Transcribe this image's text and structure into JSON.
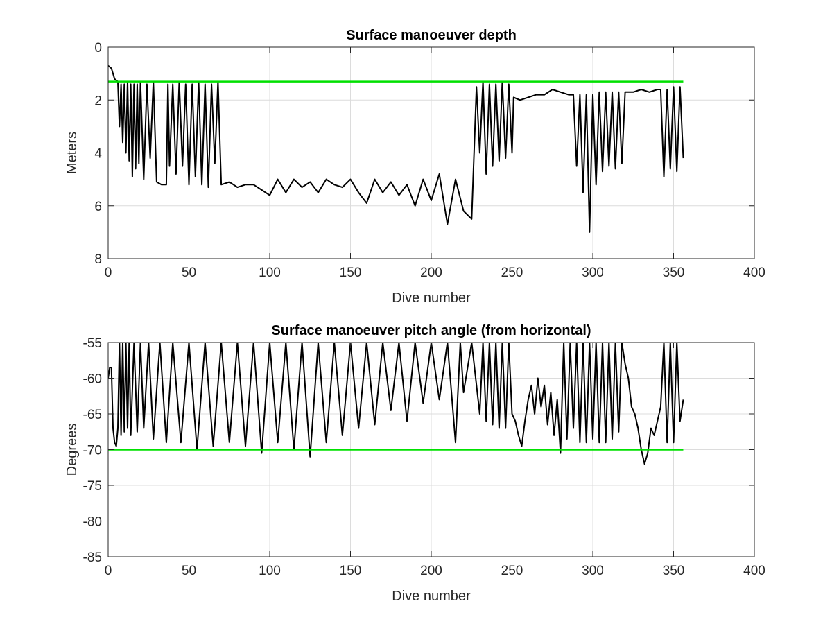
{
  "chart_data": [
    {
      "type": "line",
      "title": "Surface manoeuver depth",
      "xlabel": "Dive number",
      "ylabel": "Meters",
      "xlim": [
        0,
        400
      ],
      "ylim": [
        0,
        8
      ],
      "y_reversed": true,
      "grid": true,
      "x_ticks": [
        "0",
        "50",
        "100",
        "150",
        "200",
        "250",
        "300",
        "350",
        "400"
      ],
      "y_ticks": [
        "0",
        "2",
        "4",
        "6",
        "8"
      ],
      "reference_line": {
        "y": 1.3,
        "x_range": [
          0,
          356
        ],
        "color": "#00e000"
      },
      "series": [
        {
          "color": "#000000",
          "x": [
            0,
            2,
            4,
            6,
            7,
            8,
            9,
            10,
            11,
            12,
            13,
            14,
            15,
            16,
            17,
            18,
            19,
            20,
            22,
            24,
            26,
            28,
            30,
            33,
            36,
            37,
            38,
            40,
            42,
            44,
            46,
            48,
            50,
            52,
            54,
            56,
            58,
            60,
            62,
            64,
            66,
            68,
            70,
            75,
            80,
            85,
            90,
            95,
            100,
            105,
            110,
            115,
            120,
            125,
            130,
            135,
            140,
            145,
            150,
            155,
            160,
            165,
            170,
            175,
            180,
            185,
            190,
            195,
            200,
            205,
            210,
            215,
            220,
            225,
            228,
            230,
            232,
            234,
            236,
            238,
            240,
            242,
            244,
            246,
            248,
            250,
            251,
            255,
            260,
            265,
            270,
            275,
            280,
            285,
            288,
            290,
            292,
            294,
            296,
            298,
            300,
            302,
            304,
            306,
            308,
            310,
            312,
            314,
            316,
            318,
            320,
            325,
            330,
            335,
            340,
            342,
            344,
            346,
            348,
            350,
            352,
            354,
            356
          ],
          "y": [
            0.7,
            0.8,
            1.2,
            1.3,
            3.0,
            1.4,
            3.6,
            1.4,
            4.0,
            1.3,
            4.3,
            1.4,
            4.9,
            1.4,
            4.6,
            1.4,
            4.4,
            1.3,
            5.0,
            1.4,
            4.2,
            1.3,
            5.1,
            5.2,
            5.2,
            1.4,
            4.5,
            1.4,
            4.8,
            1.3,
            4.5,
            1.4,
            5.2,
            1.4,
            4.9,
            1.3,
            5.2,
            1.4,
            5.3,
            1.4,
            4.4,
            1.3,
            5.2,
            5.1,
            5.3,
            5.2,
            5.2,
            5.4,
            5.6,
            5.0,
            5.5,
            5.0,
            5.3,
            5.1,
            5.5,
            5.0,
            5.2,
            5.3,
            5.0,
            5.5,
            5.9,
            5.0,
            5.5,
            5.1,
            5.6,
            5.2,
            6.0,
            5.0,
            5.8,
            4.8,
            6.7,
            5.0,
            6.2,
            6.5,
            1.5,
            4.0,
            1.3,
            4.8,
            1.4,
            4.5,
            1.4,
            4.3,
            1.3,
            4.2,
            1.4,
            4.0,
            1.9,
            2.0,
            1.9,
            1.8,
            1.8,
            1.6,
            1.7,
            1.8,
            1.8,
            4.5,
            1.8,
            5.5,
            1.8,
            7.0,
            1.8,
            5.2,
            1.7,
            4.7,
            1.7,
            4.5,
            1.7,
            4.6,
            1.7,
            4.4,
            1.7,
            1.7,
            1.6,
            1.7,
            1.6,
            1.6,
            4.9,
            1.6,
            4.6,
            1.5,
            4.7,
            1.5,
            4.2
          ]
        }
      ]
    },
    {
      "type": "line",
      "title": "Surface manoeuver pitch angle (from horizontal)",
      "xlabel": "Dive number",
      "ylabel": "Degrees",
      "xlim": [
        0,
        400
      ],
      "ylim": [
        -85,
        -55
      ],
      "grid": true,
      "x_ticks": [
        "0",
        "50",
        "100",
        "150",
        "200",
        "250",
        "300",
        "350",
        "400"
      ],
      "y_ticks": [
        "-55",
        "-60",
        "-65",
        "-70",
        "-75",
        "-80",
        "-85"
      ],
      "reference_line": {
        "y": -70,
        "x_range": [
          0,
          356
        ],
        "color": "#00e000"
      },
      "series": [
        {
          "color": "#000000",
          "x": [
            0,
            1,
            2,
            3,
            4,
            5,
            6,
            7,
            8,
            9,
            10,
            11,
            12,
            13,
            14,
            16,
            18,
            20,
            22,
            25,
            28,
            32,
            36,
            40,
            45,
            50,
            55,
            60,
            65,
            70,
            75,
            80,
            85,
            90,
            95,
            100,
            105,
            110,
            115,
            120,
            125,
            130,
            135,
            140,
            145,
            150,
            155,
            160,
            165,
            170,
            175,
            180,
            185,
            190,
            195,
            200,
            205,
            210,
            215,
            218,
            220,
            225,
            230,
            232,
            234,
            236,
            238,
            240,
            242,
            244,
            246,
            248,
            250,
            252,
            254,
            256,
            258,
            260,
            262,
            264,
            266,
            268,
            270,
            272,
            274,
            276,
            278,
            280,
            282,
            284,
            286,
            288,
            290,
            292,
            294,
            296,
            298,
            300,
            302,
            304,
            306,
            308,
            310,
            312,
            314,
            316,
            318,
            320,
            322,
            324,
            326,
            328,
            330,
            332,
            334,
            336,
            338,
            340,
            342,
            344,
            346,
            348,
            350,
            352,
            354,
            356
          ],
          "y": [
            -60.0,
            -58.5,
            -58.5,
            -67.0,
            -69.0,
            -69.5,
            -67.0,
            -55.0,
            -68.0,
            -55.0,
            -67.5,
            -55.0,
            -67.0,
            -55.0,
            -68.0,
            -55.0,
            -67.5,
            -55.0,
            -67.0,
            -55.0,
            -68.5,
            -55.0,
            -69.0,
            -55.0,
            -69.0,
            -55.0,
            -70.0,
            -55.0,
            -69.5,
            -55.0,
            -69.0,
            -55.0,
            -69.5,
            -55.0,
            -70.5,
            -55.0,
            -69.0,
            -55.0,
            -70.0,
            -55.0,
            -71.0,
            -55.0,
            -69.0,
            -55.0,
            -68.0,
            -55.0,
            -67.0,
            -55.0,
            -66.5,
            -55.0,
            -64.5,
            -55.0,
            -66.0,
            -55.0,
            -63.5,
            -55.0,
            -63.0,
            -55.0,
            -69.0,
            -55.0,
            -62.0,
            -55.0,
            -65.0,
            -55.0,
            -66.0,
            -55.0,
            -66.5,
            -55.0,
            -67.0,
            -55.0,
            -67.0,
            -55.0,
            -65.0,
            -66.0,
            -68.0,
            -69.5,
            -66.0,
            -63.0,
            -61.0,
            -65.0,
            -60.0,
            -64.0,
            -61.0,
            -66.5,
            -62.0,
            -68.0,
            -63.0,
            -70.5,
            -55.0,
            -68.5,
            -55.0,
            -67.0,
            -55.0,
            -69.0,
            -55.0,
            -69.0,
            -55.0,
            -68.5,
            -55.0,
            -69.0,
            -55.0,
            -69.0,
            -55.0,
            -68.5,
            -55.0,
            -67.5,
            -55.0,
            -58.0,
            -60.0,
            -64.0,
            -65.0,
            -67.0,
            -70.0,
            -72.0,
            -70.5,
            -67.0,
            -68.0,
            -66.0,
            -64.0,
            -55.0,
            -69.0,
            -55.0,
            -69.0,
            -55.0,
            -66.0,
            -63.0
          ]
        }
      ]
    }
  ]
}
